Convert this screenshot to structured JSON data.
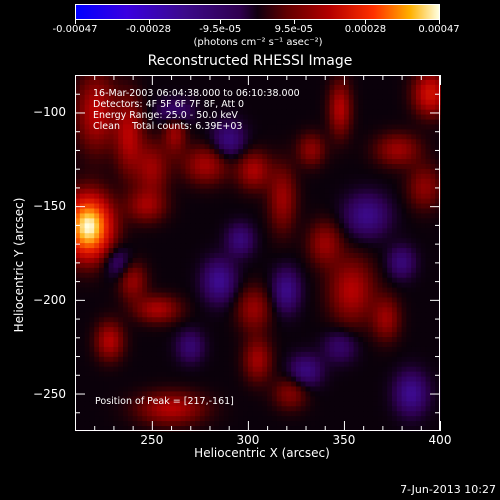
{
  "chart_data": {
    "type": "heatmap",
    "title": "Reconstructed RHESSI Image",
    "xlabel": "Heliocentric X (arcsec)",
    "ylabel": "Heliocentric Y (arcsec)",
    "xlim": [
      210,
      400
    ],
    "ylim": [
      -270,
      -80
    ],
    "x_ticks": [
      "250",
      "300",
      "350",
      "400"
    ],
    "x_tick_values": [
      250,
      300,
      350,
      400
    ],
    "y_ticks": [
      "-100",
      "-150",
      "-200",
      "-250"
    ],
    "y_tick_values": [
      -100,
      -150,
      -200,
      -250
    ],
    "colorbar": {
      "ticks": [
        "-0.00047",
        "-0.00028",
        "-9.5e-05",
        "9.5e-05",
        "0.00028",
        "0.00047"
      ],
      "tick_values": [
        -0.00047,
        -0.00028,
        -9.5e-05,
        9.5e-05,
        0.00028,
        0.00047
      ],
      "unit": "(photons cm⁻² s⁻¹ asec⁻²)",
      "colors": [
        "#0000ff",
        "#3b0a8a",
        "#100010",
        "#b40000",
        "#ff3000",
        "#ffffe0"
      ]
    },
    "annotations": {
      "time_range": "16-Mar-2003 06:04:38.000 to 06:10:38.000",
      "detectors": "Detectors: 4F 5F 6F 7F 8F, Att 0",
      "energy": "Energy Range: 25.0 - 50.0 keV",
      "clean": "Clean    Total counts: 6.39E+03",
      "peak": "Position of Peak = [217,-161]"
    },
    "peak": {
      "x": 217,
      "y": -161,
      "relative_intensity": 1.0
    },
    "blobs": [
      {
        "x": 217,
        "y": -161,
        "sx": 8,
        "sy": 11,
        "v": 1.0
      },
      {
        "x": 221,
        "y": -100,
        "sx": 7,
        "sy": 14,
        "v": 0.32
      },
      {
        "x": 238,
        "y": -112,
        "sx": 5,
        "sy": 14,
        "v": 0.3
      },
      {
        "x": 250,
        "y": -130,
        "sx": 6,
        "sy": 10,
        "v": 0.25
      },
      {
        "x": 247,
        "y": -150,
        "sx": 7,
        "sy": 6,
        "v": 0.24
      },
      {
        "x": 262,
        "y": -110,
        "sx": 4,
        "sy": 8,
        "v": 0.26
      },
      {
        "x": 278,
        "y": -128,
        "sx": 8,
        "sy": 7,
        "v": 0.27
      },
      {
        "x": 303,
        "y": -131,
        "sx": 6,
        "sy": 7,
        "v": 0.28
      },
      {
        "x": 318,
        "y": -146,
        "sx": 5,
        "sy": 12,
        "v": 0.25
      },
      {
        "x": 348,
        "y": -98,
        "sx": 4,
        "sy": 10,
        "v": 0.3
      },
      {
        "x": 333,
        "y": -120,
        "sx": 5,
        "sy": 6,
        "v": 0.22
      },
      {
        "x": 395,
        "y": -90,
        "sx": 6,
        "sy": 8,
        "v": 0.4
      },
      {
        "x": 378,
        "y": -120,
        "sx": 8,
        "sy": 6,
        "v": 0.25
      },
      {
        "x": 340,
        "y": -170,
        "sx": 6,
        "sy": 8,
        "v": 0.24
      },
      {
        "x": 354,
        "y": -195,
        "sx": 8,
        "sy": 12,
        "v": 0.3
      },
      {
        "x": 372,
        "y": -210,
        "sx": 5,
        "sy": 8,
        "v": 0.24
      },
      {
        "x": 240,
        "y": -190,
        "sx": 5,
        "sy": 7,
        "v": 0.24
      },
      {
        "x": 253,
        "y": -205,
        "sx": 8,
        "sy": 5,
        "v": 0.28
      },
      {
        "x": 228,
        "y": -222,
        "sx": 5,
        "sy": 7,
        "v": 0.3
      },
      {
        "x": 260,
        "y": -258,
        "sx": 12,
        "sy": 6,
        "v": 0.3
      },
      {
        "x": 303,
        "y": -205,
        "sx": 6,
        "sy": 8,
        "v": 0.24
      },
      {
        "x": 305,
        "y": -232,
        "sx": 5,
        "sy": 8,
        "v": 0.26
      },
      {
        "x": 322,
        "y": -250,
        "sx": 6,
        "sy": 6,
        "v": 0.2
      },
      {
        "x": 392,
        "y": -140,
        "sx": 6,
        "sy": 8,
        "v": 0.22
      },
      {
        "x": 262,
        "y": -100,
        "sx": 6,
        "sy": 5,
        "v": -0.25
      },
      {
        "x": 290,
        "y": -115,
        "sx": 6,
        "sy": 7,
        "v": -0.22
      },
      {
        "x": 285,
        "y": -190,
        "sx": 6,
        "sy": 8,
        "v": -0.26
      },
      {
        "x": 296,
        "y": -168,
        "sx": 5,
        "sy": 6,
        "v": -0.2
      },
      {
        "x": 320,
        "y": -195,
        "sx": 5,
        "sy": 8,
        "v": -0.24
      },
      {
        "x": 330,
        "y": -238,
        "sx": 6,
        "sy": 6,
        "v": -0.22
      },
      {
        "x": 362,
        "y": -155,
        "sx": 8,
        "sy": 8,
        "v": -0.24
      },
      {
        "x": 380,
        "y": -180,
        "sx": 5,
        "sy": 6,
        "v": -0.2
      },
      {
        "x": 385,
        "y": -250,
        "sx": 6,
        "sy": 8,
        "v": -0.26
      },
      {
        "x": 232,
        "y": -180,
        "sx": 5,
        "sy": 6,
        "v": -0.18
      },
      {
        "x": 270,
        "y": -225,
        "sx": 5,
        "sy": 6,
        "v": -0.18
      },
      {
        "x": 348,
        "y": -225,
        "sx": 6,
        "sy": 6,
        "v": -0.16
      }
    ]
  },
  "footer": {
    "date": "7-Jun-2013 10:27"
  }
}
